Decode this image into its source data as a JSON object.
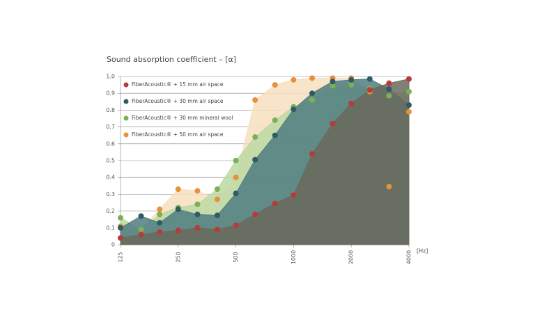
{
  "chart_data": {
    "type": "area",
    "title": "Sound absorption coefficient – [α]",
    "x_unit": "[Hz]",
    "x": [
      125,
      160,
      200,
      250,
      315,
      400,
      500,
      630,
      800,
      1000,
      1250,
      1600,
      2000,
      2500,
      3150,
      4000
    ],
    "xlim": [
      125,
      4000
    ],
    "xscale": "log",
    "xticks": [
      125,
      250,
      500,
      1000,
      2000,
      4000
    ],
    "ylim": [
      0,
      1
    ],
    "yticks": [
      0,
      0.1,
      0.2,
      0.3,
      0.4,
      0.5,
      0.6,
      0.7,
      0.8,
      0.9,
      {
        "value": 1,
        "label": "1.0"
      }
    ],
    "grid": true,
    "legend": "upper left",
    "series": [
      {
        "name": "FiberAcoustic® + 50 mm air space",
        "color": "#e8903a",
        "fill": "#f7dfbf",
        "values": [
          0.11,
          0.09,
          0.21,
          0.33,
          0.32,
          0.27,
          0.4,
          0.86,
          0.95,
          0.98,
          0.99,
          0.99,
          0.99,
          0.91,
          0.345,
          0.79
        ]
      },
      {
        "name": "FiberAcoustic® + 30 mm mineral wool",
        "color": "#7bb055",
        "fill": "#bcd9a3",
        "values": [
          0.16,
          0.09,
          0.18,
          0.22,
          0.24,
          0.33,
          0.5,
          0.64,
          0.74,
          0.82,
          0.86,
          0.945,
          0.95,
          0.93,
          0.885,
          0.91
        ]
      },
      {
        "name": "FiberAcoustic® + 30 mm air space",
        "color": "#2f5b66",
        "fill": "#4f7c80",
        "values": [
          0.1,
          0.17,
          0.13,
          0.21,
          0.18,
          0.175,
          0.305,
          0.505,
          0.65,
          0.805,
          0.9,
          0.97,
          0.98,
          0.985,
          0.925,
          0.83
        ]
      },
      {
        "name": "FiberAcoustic® + 15 mm air space",
        "color": "#b83a3a",
        "fill": "#6a6a5c",
        "values": [
          0.04,
          0.06,
          0.075,
          0.085,
          0.1,
          0.09,
          0.115,
          0.18,
          0.245,
          0.295,
          0.54,
          0.72,
          0.84,
          0.92,
          0.96,
          0.985
        ]
      }
    ]
  }
}
